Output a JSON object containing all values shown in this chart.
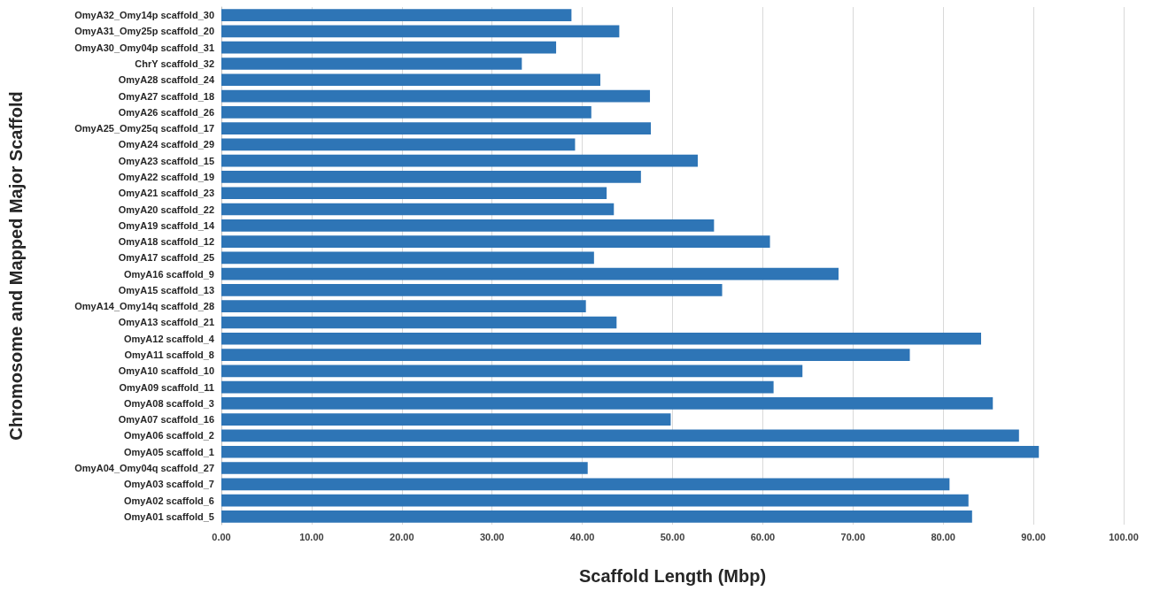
{
  "chart_data": {
    "type": "bar",
    "orientation": "horizontal",
    "xlabel": "Scaffold Length (Mbp)",
    "ylabel": "Chromosome and Mapped Major Scaffold",
    "categories": [
      "OmyA32_Omy14p scaffold_30",
      "OmyA31_Omy25p scaffold_20",
      "OmyA30_Omy04p scaffold_31",
      "ChrY scaffold_32",
      "OmyA28 scaffold_24",
      "OmyA27 scaffold_18",
      "OmyA26 scaffold_26",
      "OmyA25_Omy25q scaffold_17",
      "OmyA24 scaffold_29",
      "OmyA23 scaffold_15",
      "OmyA22 scaffold_19",
      "OmyA21 scaffold_23",
      "OmyA20 scaffold_22",
      "OmyA19 scaffold_14",
      "OmyA18 scaffold_12",
      "OmyA17 scaffold_25",
      "OmyA16 scaffold_9",
      "OmyA15 scaffold_13",
      "OmyA14_Omy14q scaffold_28",
      "OmyA13 scaffold_21",
      "OmyA12 scaffold_4",
      "OmyA11 scaffold_8",
      "OmyA10 scaffold_10",
      "OmyA09 scaffold_11",
      "OmyA08 scaffold_3",
      "OmyA07 scaffold_16",
      "OmyA06 scaffold_2",
      "OmyA05 scaffold_1",
      "OmyA04_Omy04q scaffold_27",
      "OmyA03 scaffold_7",
      "OmyA02 scaffold_6",
      "OmyA01 scaffold_5"
    ],
    "values": [
      38.8,
      44.1,
      37.1,
      33.3,
      42.0,
      47.5,
      41.0,
      47.6,
      39.2,
      52.8,
      46.5,
      42.7,
      43.5,
      54.6,
      60.8,
      41.3,
      68.4,
      55.5,
      40.4,
      43.8,
      84.2,
      76.3,
      64.4,
      61.2,
      85.5,
      49.8,
      88.4,
      90.6,
      40.6,
      80.7,
      82.8,
      83.2
    ],
    "color": "#2e75b6",
    "xlim": [
      0,
      100
    ],
    "xticks": [
      {
        "value": 0,
        "label": "0.00"
      },
      {
        "value": 10,
        "label": "10.00"
      },
      {
        "value": 20,
        "label": "20.00"
      },
      {
        "value": 30,
        "label": "30.00"
      },
      {
        "value": 40,
        "label": "40.00"
      },
      {
        "value": 50,
        "label": "50.00"
      },
      {
        "value": 60,
        "label": "60.00"
      },
      {
        "value": 70,
        "label": "70.00"
      },
      {
        "value": 80,
        "label": "80.00"
      },
      {
        "value": 90,
        "label": "90.00"
      },
      {
        "value": 100,
        "label": "100.00"
      }
    ],
    "grid": "x"
  }
}
